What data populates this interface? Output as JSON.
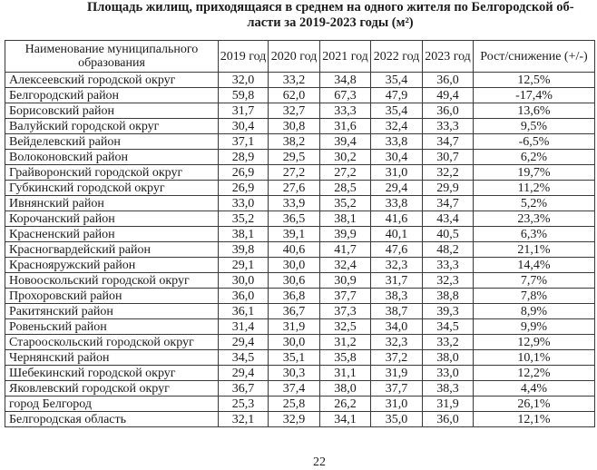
{
  "title": {
    "line1": "Площадь жилищ, приходящаяся в среднем на одного жителя по Белгородской об-",
    "line2": "ласти за 2019-2023 годы (м²)"
  },
  "table": {
    "headers": [
      "Наименование муниципального образования",
      "2019 год",
      "2020 год",
      "2021 год",
      "2022 год",
      "2023 год",
      "Рост/снижение (+/-)"
    ],
    "rows": [
      {
        "name": "Алексеевский городской округ",
        "values": [
          "32,0",
          "33,2",
          "34,8",
          "35,4",
          "36,0"
        ],
        "change": "12,5%"
      },
      {
        "name": "Белгородский район",
        "values": [
          "59,8",
          "62,0",
          "67,3",
          "47,9",
          "49,4"
        ],
        "change": "-17,4%"
      },
      {
        "name": "Борисовский район",
        "values": [
          "31,7",
          "32,7",
          "33,3",
          "35,4",
          "36,0"
        ],
        "change": "13,6%"
      },
      {
        "name": "Валуйский городской округ",
        "values": [
          "30,4",
          "30,8",
          "31,6",
          "32,4",
          "33,3"
        ],
        "change": "9,5%"
      },
      {
        "name": "Вейделевский район",
        "values": [
          "37,1",
          "38,2",
          "39,4",
          "33,8",
          "34,7"
        ],
        "change": "-6,5%"
      },
      {
        "name": "Волоконовский район",
        "values": [
          "28,9",
          "29,5",
          "30,2",
          "30,4",
          "30,7"
        ],
        "change": "6,2%"
      },
      {
        "name": "Грайворонский городской округ",
        "values": [
          "26,9",
          "27,2",
          "27,2",
          "31,0",
          "32,2"
        ],
        "change": "19,7%"
      },
      {
        "name": "Губкинский городской округ",
        "values": [
          "26,9",
          "27,6",
          "28,5",
          "29,4",
          "29,9"
        ],
        "change": "11,2%"
      },
      {
        "name": "Ивнянский район",
        "values": [
          "33,0",
          "33,9",
          "35,2",
          "33,8",
          "34,7"
        ],
        "change": "5,2%"
      },
      {
        "name": "Корочанский район",
        "values": [
          "35,2",
          "36,5",
          "38,1",
          "41,6",
          "43,4"
        ],
        "change": "23,3%"
      },
      {
        "name": "Красненский район",
        "values": [
          "38,1",
          "39,1",
          "39,9",
          "40,1",
          "40,5"
        ],
        "change": "6,3%"
      },
      {
        "name": "Красногвардейский район",
        "values": [
          "39,8",
          "40,6",
          "41,7",
          "47,6",
          "48,2"
        ],
        "change": "21,1%"
      },
      {
        "name": "Краснояружский район",
        "values": [
          "29,1",
          "30,0",
          "32,4",
          "32,3",
          "33,3"
        ],
        "change": "14,4%"
      },
      {
        "name": "Новооскольский городской округ",
        "values": [
          "30,0",
          "30,6",
          "30,9",
          "31,7",
          "32,3"
        ],
        "change": "7,7%"
      },
      {
        "name": "Прохоровский район",
        "values": [
          "36,0",
          "36,8",
          "37,7",
          "38,3",
          "38,8"
        ],
        "change": "7,8%"
      },
      {
        "name": "Ракитянский район",
        "values": [
          "36,1",
          "36,7",
          "37,3",
          "38,7",
          "39,3"
        ],
        "change": "8,9%"
      },
      {
        "name": "Ровеньский район",
        "values": [
          "31,4",
          "31,9",
          "32,5",
          "34,0",
          "34,5"
        ],
        "change": "9,9%"
      },
      {
        "name": "Старооскольский городской округ",
        "values": [
          "29,4",
          "30,0",
          "31,2",
          "32,3",
          "33,2"
        ],
        "change": "12,9%"
      },
      {
        "name": "Чернянский район",
        "values": [
          "34,5",
          "35,1",
          "35,8",
          "37,2",
          "38,0"
        ],
        "change": "10,1%"
      },
      {
        "name": "Шебекинский городской округ",
        "values": [
          "29,4",
          "30,3",
          "31,1",
          "31,9",
          "33,0"
        ],
        "change": "12,2%"
      },
      {
        "name": "Яковлевский городской округ",
        "values": [
          "36,7",
          "37,4",
          "38,0",
          "37,7",
          "38,3"
        ],
        "change": "4,4%"
      },
      {
        "name": "город Белгород",
        "values": [
          "25,3",
          "25,8",
          "26,2",
          "31,0",
          "31,9"
        ],
        "change": "26,1%"
      },
      {
        "name": "Белгородская область",
        "values": [
          "32,1",
          "32,9",
          "34,1",
          "35,0",
          "36,0"
        ],
        "change": "12,1%"
      }
    ]
  },
  "page_number": "22"
}
